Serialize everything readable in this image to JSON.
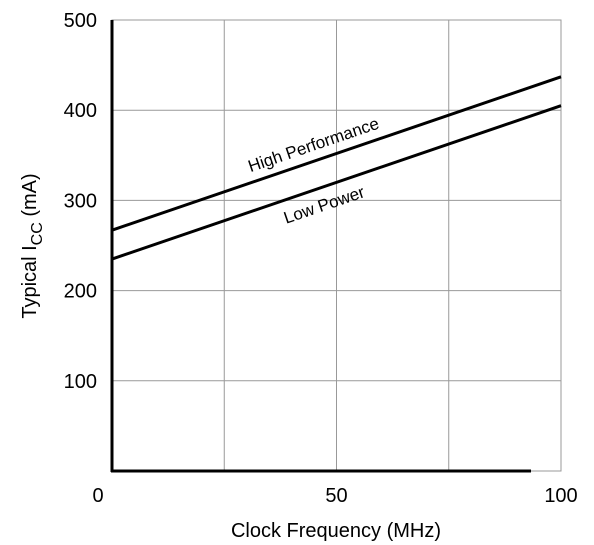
{
  "chart_data": {
    "type": "line",
    "title": "",
    "xlabel": "Clock Frequency (MHz)",
    "ylabel_main": "Typical I",
    "ylabel_sub": "CC",
    "ylabel_unit": " (mA)",
    "xlim": [
      0,
      100
    ],
    "ylim": [
      0,
      500
    ],
    "x_ticks": [
      0,
      25,
      50,
      75,
      100
    ],
    "x_tick_labels": [
      "0",
      "",
      "50",
      "",
      "100"
    ],
    "y_ticks": [
      0,
      100,
      200,
      300,
      400,
      500
    ],
    "y_tick_labels": [
      "",
      "100",
      "200",
      "300",
      "400",
      "500"
    ],
    "grid": true,
    "legend": "none",
    "series": [
      {
        "name": "High Performance",
        "x": [
          0,
          100
        ],
        "values": [
          267,
          437
        ],
        "color": "#000000"
      },
      {
        "name": "Low Power",
        "x": [
          0,
          100
        ],
        "values": [
          235,
          405
        ],
        "color": "#000000"
      }
    ]
  }
}
